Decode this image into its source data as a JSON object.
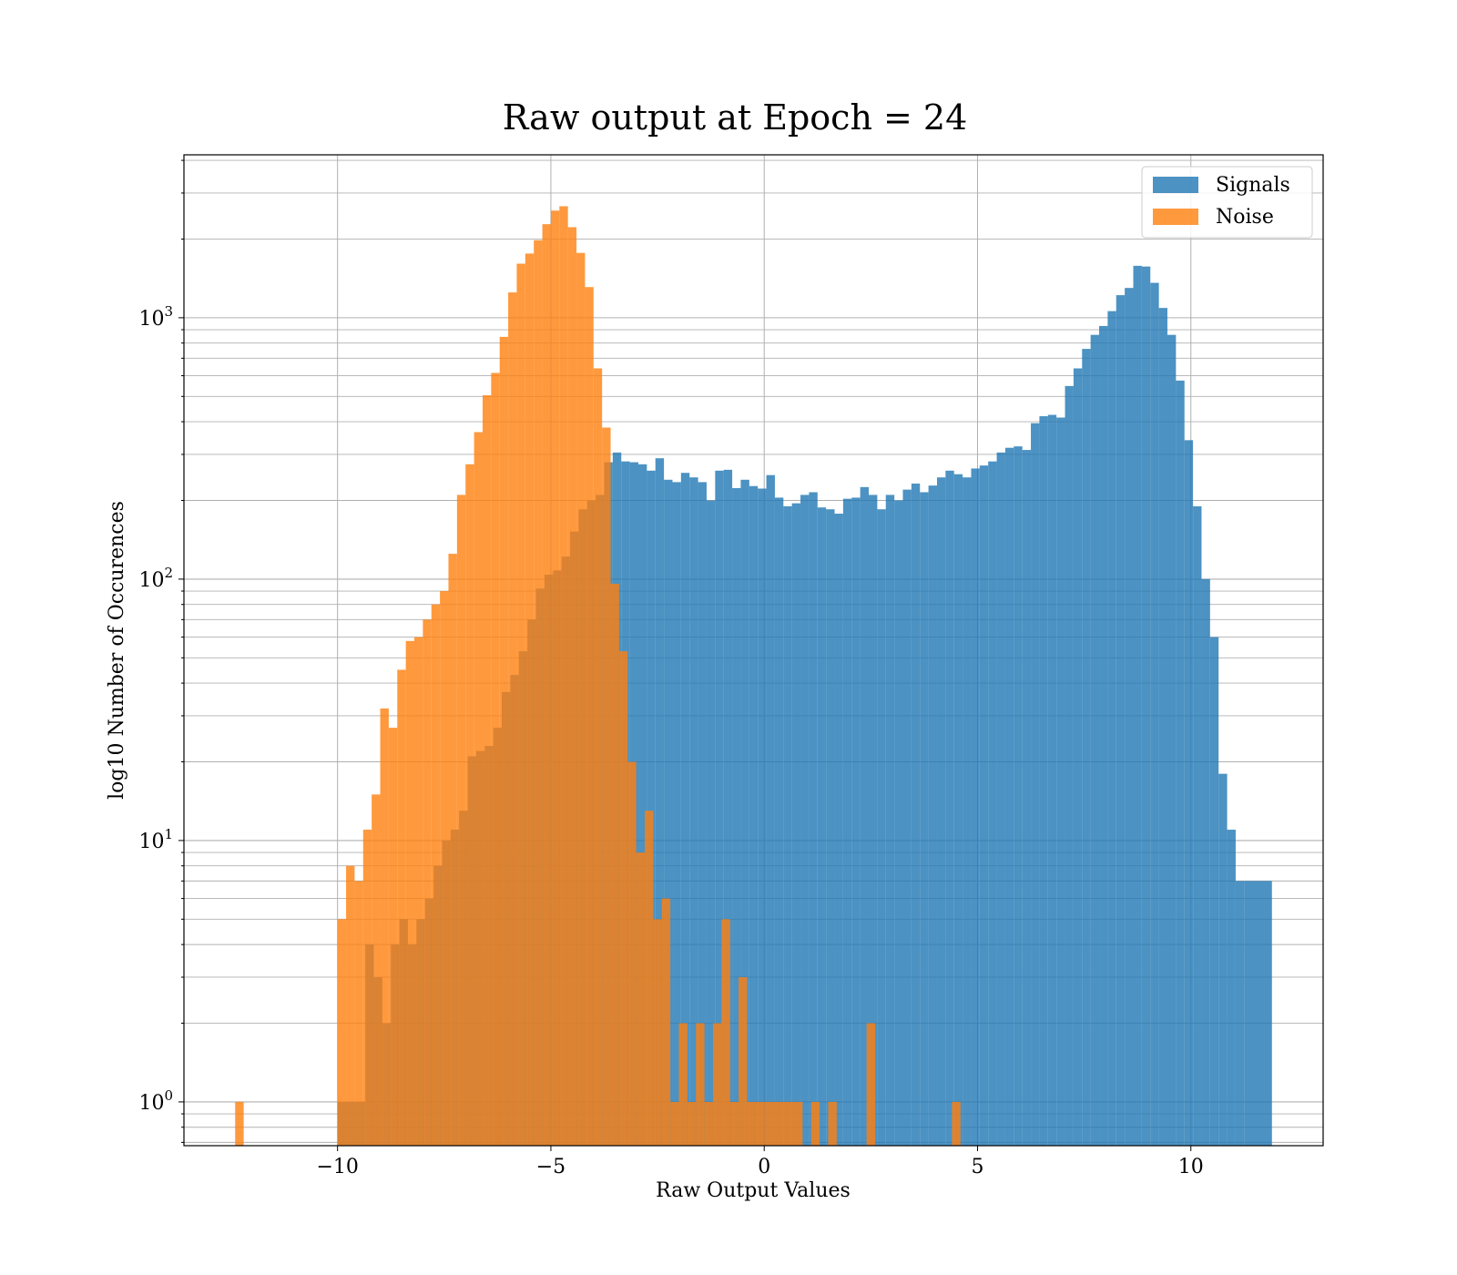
{
  "chart_data": {
    "type": "bar",
    "title": "Raw output at Epoch = 24",
    "xlabel": "Raw Output Values",
    "ylabel": "log10 Number of Occurences",
    "xlim": [
      -13.6,
      13.1
    ],
    "ylim": [
      0.68,
      4200
    ],
    "yscale": "log",
    "grid": true,
    "legend_position": "top-right",
    "xticks": [
      {
        "value": -10,
        "label": "−10"
      },
      {
        "value": -5,
        "label": "−5"
      },
      {
        "value": 0,
        "label": "0"
      },
      {
        "value": 5,
        "label": "5"
      },
      {
        "value": 10,
        "label": "10"
      }
    ],
    "yticks": [
      {
        "value": 1,
        "base": "10",
        "exp": "0"
      },
      {
        "value": 10,
        "base": "10",
        "exp": "1"
      },
      {
        "value": 100,
        "base": "10",
        "exp": "2"
      },
      {
        "value": 1000,
        "base": "10",
        "exp": "3"
      }
    ],
    "series": [
      {
        "name": "Signals",
        "color": "#1f77b4",
        "opacity": 0.8,
        "bins": [
          [
            -10,
            -9.35,
            1
          ],
          [
            -9.35,
            -9.15,
            4
          ],
          [
            -9.15,
            -8.95,
            3
          ],
          [
            -8.95,
            -8.75,
            2
          ],
          [
            -8.75,
            -8.55,
            4
          ],
          [
            -8.55,
            -8.35,
            5
          ],
          [
            -8.35,
            -8.15,
            4
          ],
          [
            -8.15,
            -7.95,
            5
          ],
          [
            -7.95,
            -7.75,
            6
          ],
          [
            -7.75,
            -7.55,
            8
          ],
          [
            -7.55,
            -7.35,
            10
          ],
          [
            -7.35,
            -7.15,
            11
          ],
          [
            -7.15,
            -6.95,
            13
          ],
          [
            -6.95,
            -6.75,
            21
          ],
          [
            -6.75,
            -6.55,
            22
          ],
          [
            -6.55,
            -6.35,
            23
          ],
          [
            -6.35,
            -6.15,
            27
          ],
          [
            -6.15,
            -5.95,
            37
          ],
          [
            -5.95,
            -5.75,
            43
          ],
          [
            -5.75,
            -5.55,
            53
          ],
          [
            -5.55,
            -5.35,
            70
          ],
          [
            -5.35,
            -5.15,
            92
          ],
          [
            -5.15,
            -4.95,
            104
          ],
          [
            -4.95,
            -4.75,
            108
          ],
          [
            -4.75,
            -4.55,
            122
          ],
          [
            -4.55,
            -4.35,
            152
          ],
          [
            -4.35,
            -4.15,
            185
          ],
          [
            -4.15,
            -3.95,
            200
          ],
          [
            -3.95,
            -3.75,
            210
          ],
          [
            -3.75,
            -3.55,
            280
          ],
          [
            -3.55,
            -3.35,
            305
          ],
          [
            -3.35,
            -3.15,
            282
          ],
          [
            -3.15,
            -2.95,
            280
          ],
          [
            -2.95,
            -2.75,
            275
          ],
          [
            -2.75,
            -2.55,
            260
          ],
          [
            -2.55,
            -2.35,
            290
          ],
          [
            -2.35,
            -2.15,
            240
          ],
          [
            -2.15,
            -1.95,
            235
          ],
          [
            -1.95,
            -1.75,
            255
          ],
          [
            -1.75,
            -1.55,
            245
          ],
          [
            -1.55,
            -1.35,
            235
          ],
          [
            -1.35,
            -1.15,
            200
          ],
          [
            -1.15,
            -0.95,
            260
          ],
          [
            -0.95,
            -0.75,
            262
          ],
          [
            -0.75,
            -0.55,
            223
          ],
          [
            -0.55,
            -0.35,
            240
          ],
          [
            -0.35,
            -0.15,
            227
          ],
          [
            -0.15,
            0.05,
            222
          ],
          [
            0.05,
            0.25,
            250
          ],
          [
            0.25,
            0.45,
            205
          ],
          [
            0.45,
            0.65,
            190
          ],
          [
            0.65,
            0.85,
            195
          ],
          [
            0.85,
            1.05,
            210
          ],
          [
            1.05,
            1.25,
            215
          ],
          [
            1.25,
            1.45,
            188
          ],
          [
            1.45,
            1.65,
            185
          ],
          [
            1.65,
            1.85,
            178
          ],
          [
            1.85,
            2.05,
            203
          ],
          [
            2.05,
            2.25,
            205
          ],
          [
            2.25,
            2.45,
            225
          ],
          [
            2.45,
            2.65,
            210
          ],
          [
            2.65,
            2.85,
            185
          ],
          [
            2.85,
            3.05,
            210
          ],
          [
            3.05,
            3.25,
            200
          ],
          [
            3.25,
            3.45,
            220
          ],
          [
            3.45,
            3.65,
            232
          ],
          [
            3.65,
            3.85,
            215
          ],
          [
            3.85,
            4.05,
            228
          ],
          [
            4.05,
            4.25,
            245
          ],
          [
            4.25,
            4.45,
            260
          ],
          [
            4.45,
            4.65,
            252
          ],
          [
            4.65,
            4.85,
            245
          ],
          [
            4.85,
            5.05,
            265
          ],
          [
            5.05,
            5.25,
            272
          ],
          [
            5.25,
            5.45,
            282
          ],
          [
            5.45,
            5.65,
            305
          ],
          [
            5.65,
            5.85,
            318
          ],
          [
            5.85,
            6.05,
            322
          ],
          [
            6.05,
            6.25,
            312
          ],
          [
            6.25,
            6.45,
            395
          ],
          [
            6.45,
            6.65,
            420
          ],
          [
            6.65,
            6.85,
            425
          ],
          [
            6.85,
            7.05,
            415
          ],
          [
            7.05,
            7.25,
            548
          ],
          [
            7.25,
            7.45,
            640
          ],
          [
            7.45,
            7.65,
            760
          ],
          [
            7.65,
            7.85,
            860
          ],
          [
            7.85,
            8.05,
            930
          ],
          [
            8.05,
            8.25,
            1060
          ],
          [
            8.25,
            8.45,
            1220
          ],
          [
            8.45,
            8.65,
            1300
          ],
          [
            8.65,
            8.85,
            1580
          ],
          [
            8.85,
            9.05,
            1570
          ],
          [
            9.05,
            9.25,
            1360
          ],
          [
            9.25,
            9.45,
            1090
          ],
          [
            9.45,
            9.65,
            860
          ],
          [
            9.65,
            9.85,
            575
          ],
          [
            9.85,
            10.05,
            340
          ],
          [
            10.05,
            10.25,
            190
          ],
          [
            10.25,
            10.45,
            100
          ],
          [
            10.45,
            10.65,
            60
          ],
          [
            10.65,
            10.85,
            18
          ],
          [
            10.85,
            11.05,
            11
          ],
          [
            11.05,
            11.25,
            7
          ],
          [
            11.25,
            11.9,
            7
          ]
        ]
      },
      {
        "name": "Noise",
        "color": "#ff7f0e",
        "opacity": 0.8,
        "bins": [
          [
            -12.4,
            -12.2,
            1
          ],
          [
            -10,
            -9.8,
            5
          ],
          [
            -9.8,
            -9.6,
            8
          ],
          [
            -9.6,
            -9.4,
            7
          ],
          [
            -9.4,
            -9.2,
            11
          ],
          [
            -9.2,
            -9.0,
            15
          ],
          [
            -9.0,
            -8.8,
            32
          ],
          [
            -8.8,
            -8.6,
            27
          ],
          [
            -8.6,
            -8.4,
            45
          ],
          [
            -8.4,
            -8.2,
            58
          ],
          [
            -8.2,
            -8.0,
            60
          ],
          [
            -8.0,
            -7.8,
            70
          ],
          [
            -7.8,
            -7.6,
            80
          ],
          [
            -7.6,
            -7.4,
            90
          ],
          [
            -7.4,
            -7.2,
            125
          ],
          [
            -7.2,
            -7.0,
            210
          ],
          [
            -7.0,
            -6.8,
            275
          ],
          [
            -6.8,
            -6.6,
            365
          ],
          [
            -6.6,
            -6.4,
            505
          ],
          [
            -6.4,
            -6.2,
            615
          ],
          [
            -6.2,
            -6.0,
            845
          ],
          [
            -6.0,
            -5.8,
            1250
          ],
          [
            -5.8,
            -5.6,
            1610
          ],
          [
            -5.6,
            -5.4,
            1760
          ],
          [
            -5.4,
            -5.2,
            1980
          ],
          [
            -5.2,
            -5.0,
            2280
          ],
          [
            -5.0,
            -4.8,
            2570
          ],
          [
            -4.8,
            -4.6,
            2670
          ],
          [
            -4.6,
            -4.4,
            2220
          ],
          [
            -4.4,
            -4.2,
            1770
          ],
          [
            -4.2,
            -4.0,
            1310
          ],
          [
            -4.0,
            -3.8,
            640
          ],
          [
            -3.8,
            -3.6,
            380
          ],
          [
            -3.6,
            -3.4,
            96
          ],
          [
            -3.4,
            -3.2,
            53
          ],
          [
            -3.2,
            -3.0,
            20
          ],
          [
            -3.0,
            -2.8,
            9
          ],
          [
            -2.8,
            -2.6,
            13
          ],
          [
            -2.6,
            -2.4,
            5
          ],
          [
            -2.4,
            -2.2,
            6
          ],
          [
            -2.2,
            -2.0,
            1
          ],
          [
            -2.0,
            -1.8,
            2
          ],
          [
            -1.8,
            -1.6,
            1
          ],
          [
            -1.6,
            -1.4,
            2
          ],
          [
            -1.4,
            -1.2,
            1
          ],
          [
            -1.2,
            -1.0,
            2
          ],
          [
            -1.0,
            -0.8,
            5
          ],
          [
            -0.8,
            -0.6,
            1
          ],
          [
            -0.6,
            -0.4,
            3
          ],
          [
            -0.4,
            -0.2,
            1
          ],
          [
            -0.2,
            0.0,
            1
          ],
          [
            0.0,
            0.9,
            1
          ],
          [
            1.1,
            1.3,
            1
          ],
          [
            1.5,
            1.7,
            1
          ],
          [
            2.4,
            2.6,
            2
          ],
          [
            4.4,
            4.6,
            1
          ]
        ]
      }
    ]
  }
}
